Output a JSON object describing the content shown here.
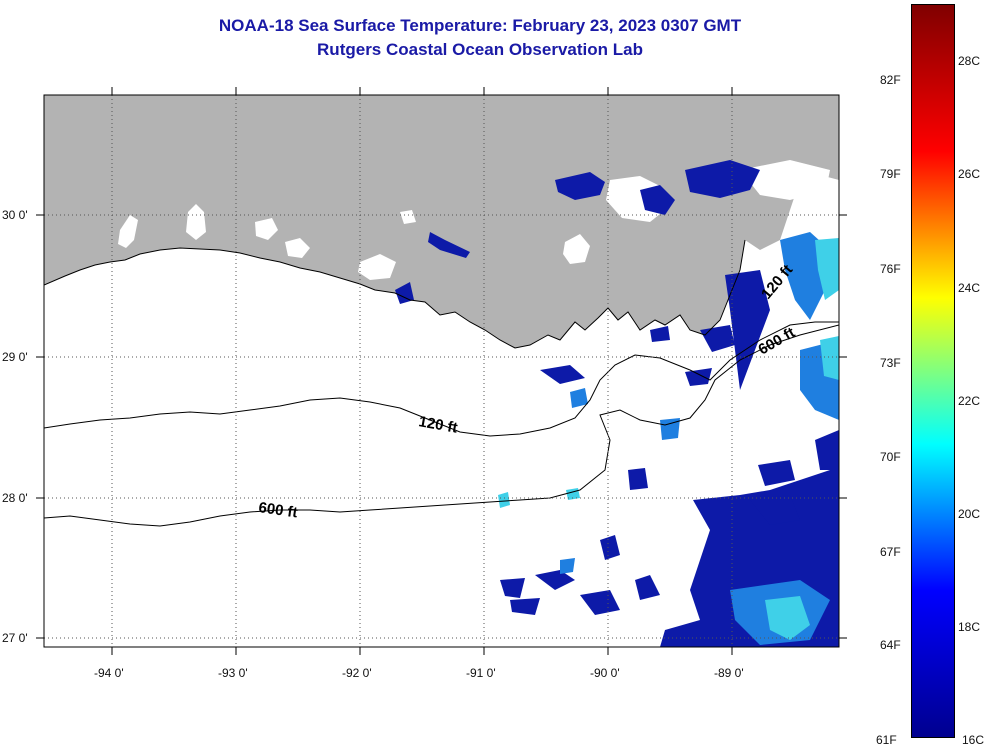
{
  "header": {
    "title": "NOAA-18 Sea Surface Temperature:  February 23, 2023 0307 GMT",
    "subtitle": "Rutgers Coastal Ocean Observation Lab"
  },
  "map": {
    "lat_labels": [
      "30 0'",
      "29 0'",
      "28 0'",
      "27 0'"
    ],
    "lon_labels": [
      "-94 0'",
      "-93 0'",
      "-92 0'",
      "-91 0'",
      "-90 0'",
      "-89 0'"
    ],
    "contours": [
      {
        "label": "120 ft"
      },
      {
        "label": "600 ft"
      }
    ],
    "contour_labels_east": [
      "120 ft",
      "600 ft"
    ],
    "colors": {
      "land": "#b3b3b3",
      "cloud": "#ffffff",
      "sst_cold": "#0d1aa8",
      "sst_mid": "#1f7fe0",
      "sst_cyan": "#3fd0e8"
    }
  },
  "colorbar": {
    "fahrenheit_labels": [
      "82F",
      "79F",
      "76F",
      "73F",
      "70F",
      "67F",
      "64F",
      "61F"
    ],
    "celsius_labels": [
      "28C",
      "26C",
      "24C",
      "22C",
      "20C",
      "18C",
      "16C"
    ],
    "colors": [
      "#00008f",
      "#0000ff",
      "#00ffff",
      "#ffff00",
      "#ff0000",
      "#800000"
    ]
  }
}
